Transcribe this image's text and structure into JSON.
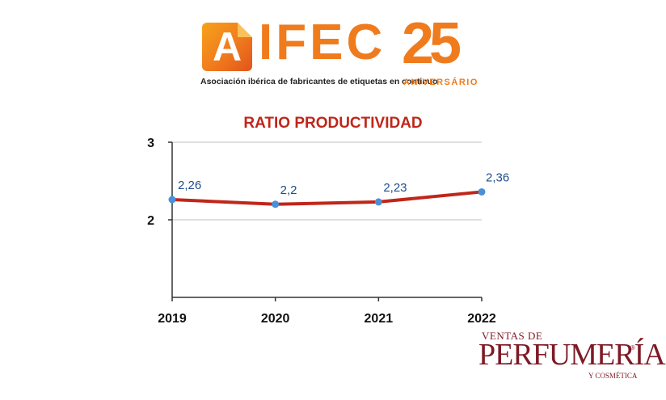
{
  "header": {
    "logo_letter": "A",
    "logo_name": "IFEC",
    "tagline": "Asociación ibérica de fabricantes de etiquetas en continuo",
    "anniversary_number": "25",
    "anniversary_label": "ANIVERSÁRIO"
  },
  "footer_logo": {
    "top": "VENTAS DE",
    "main": "PERFUMERÍA",
    "sub": "Y COSMÉTICA",
    "mark": "®"
  },
  "colors": {
    "line": "#c0261a",
    "point": "#4a90d9",
    "label": "#1f4e8c",
    "grid": "#bfbfbf",
    "title": "#c0261a"
  },
  "chart_data": {
    "type": "line",
    "title": "RATIO PRODUCTIVIDAD",
    "categories": [
      "2019",
      "2020",
      "2021",
      "2022"
    ],
    "series": [
      {
        "values": [
          2.26,
          2.2,
          2.23,
          2.36
        ],
        "labels": [
          "2,26",
          "2,2",
          "2,23",
          "2,36"
        ]
      }
    ],
    "ylim": [
      1,
      3
    ],
    "yticks": [
      2,
      3
    ],
    "ytick_labels": [
      "2",
      "3"
    ],
    "grid": true,
    "legend": "none"
  }
}
